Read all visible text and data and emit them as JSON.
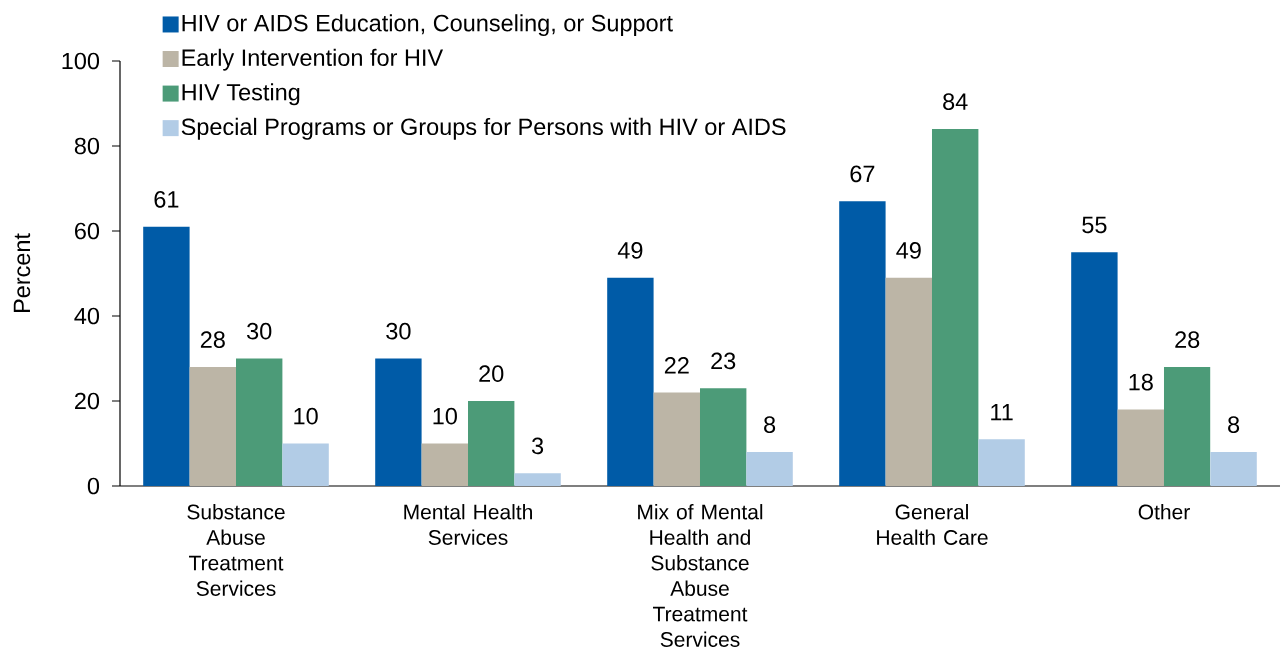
{
  "chart_data": {
    "type": "bar",
    "ylabel": "Percent",
    "categories": [
      "Substance Abuse Treatment Services",
      "Mental Health Services",
      "Mix of Mental Health and Substance Abuse Treatment Services",
      "General Health Care",
      "Other"
    ],
    "series": [
      {
        "name": "HIV or AIDS Education, Counseling, or Support",
        "color": "#005ba7",
        "values": [
          61,
          30,
          49,
          67,
          55
        ]
      },
      {
        "name": "Early Intervention for HIV",
        "color": "#bcb5a6",
        "values": [
          28,
          10,
          22,
          49,
          18
        ]
      },
      {
        "name": "HIV Testing",
        "color": "#4c9b78",
        "values": [
          30,
          20,
          23,
          84,
          28
        ]
      },
      {
        "name": "Special Programs or Groups for Persons with HIV or AIDS",
        "color": "#b2cce6",
        "values": [
          10,
          3,
          8,
          11,
          8
        ]
      }
    ],
    "ylim": [
      0,
      100
    ],
    "yticks": [
      0,
      20,
      40,
      60,
      80,
      100
    ],
    "grid": false,
    "legend": "top left",
    "data_labels": true
  }
}
